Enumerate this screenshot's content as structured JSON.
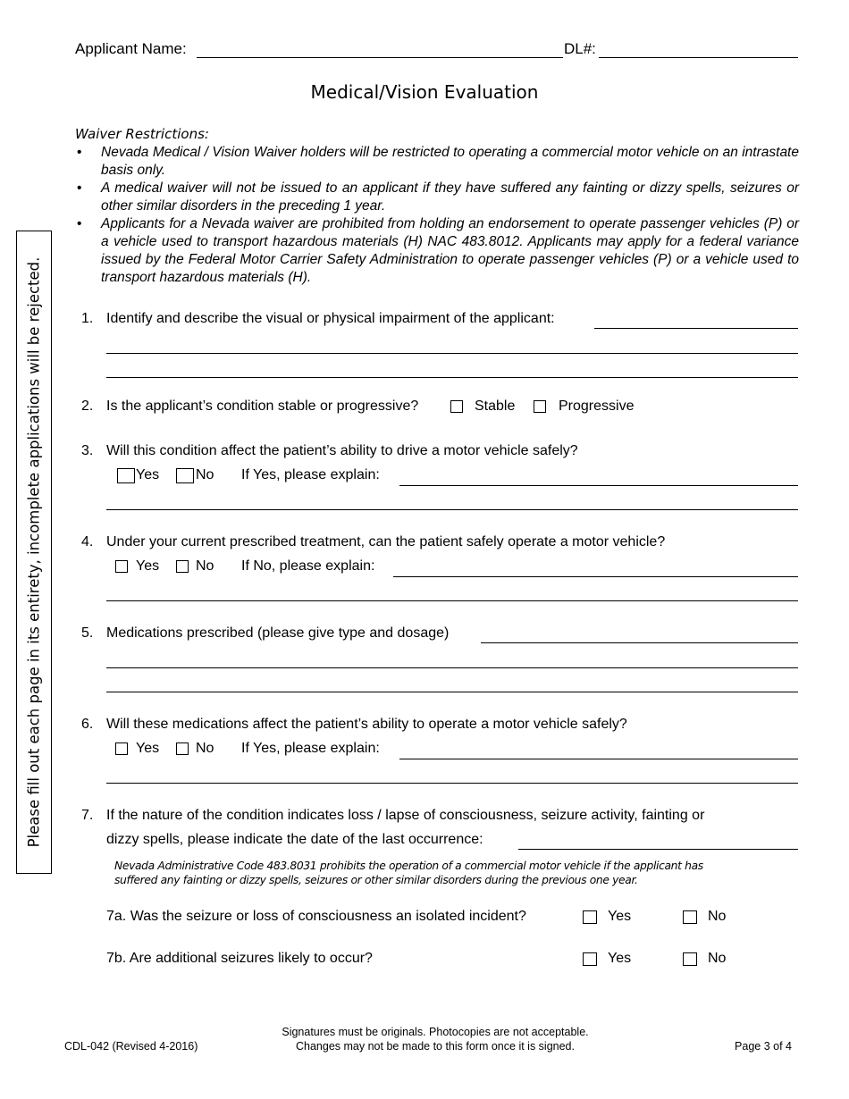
{
  "header": {
    "applicant_name_label": "Applicant Name:",
    "dl_label": "DL#:"
  },
  "title": "Medical/Vision Evaluation",
  "side_note": "Please fill out each page in its entirety, incomplete applications will be rejected.",
  "waiver": {
    "heading": "Waiver Restrictions:",
    "bullets": [
      "Nevada Medical / Vision Waiver holders will be restricted to operating a commercial motor vehicle on an intrastate basis only.",
      "A medical waiver will not be issued to an applicant if they have suffered any fainting or dizzy spells, seizures or other similar disorders in the preceding 1 year.",
      "Applicants for a Nevada waiver are prohibited from holding an endorsement to operate passenger vehicles (P) or a vehicle used to transport hazardous materials (H) NAC 483.8012.  Applicants may apply for a federal variance issued by the Federal Motor Carrier Safety Administration to operate passenger vehicles (P) or a vehicle used to transport hazardous materials (H)."
    ]
  },
  "questions": {
    "q1": {
      "num": "1.",
      "text": "Identify and describe the visual or physical impairment of the applicant:"
    },
    "q2": {
      "num": "2.",
      "text": "Is the applicant’s condition stable or progressive?",
      "opt1": "Stable",
      "opt2": "Progressive"
    },
    "q3": {
      "num": "3.",
      "text": "Will this condition affect the patient’s ability to drive a motor vehicle safely?",
      "yes": "Yes",
      "no": "No",
      "explain": "If Yes, please explain:"
    },
    "q4": {
      "num": "4.",
      "text": "Under your current prescribed treatment, can the patient safely operate a motor vehicle?",
      "yes": "Yes",
      "no": "No",
      "explain": "If No, please explain:"
    },
    "q5": {
      "num": "5.",
      "text": "Medications prescribed (please give type and dosage)"
    },
    "q6": {
      "num": "6.",
      "text": "Will these medications affect the patient’s ability to operate a motor vehicle safely?",
      "yes": "Yes",
      "no": "No",
      "explain": "If Yes, please explain:"
    },
    "q7": {
      "num": "7.",
      "line1": "If the nature of the condition indicates loss / lapse of consciousness, seizure activity, fainting or",
      "line2": "dizzy spells, please indicate the date of the last occurrence:",
      "note1": "Nevada Administrative Code 483.8031 prohibits the operation of a commercial motor vehicle if the applicant has",
      "note2": "suffered any fainting or dizzy spells, seizures or other similar disorders during the previous one year."
    },
    "q7a": {
      "text": "7a. Was the seizure or loss of consciousness an isolated incident?",
      "yes": "Yes",
      "no": "No"
    },
    "q7b": {
      "text": "7b. Are additional seizures likely to occur?",
      "yes": "Yes",
      "no": "No"
    }
  },
  "footer": {
    "form_id": "CDL-042 (Revised 4-2016)",
    "line1": "Signatures must be originals.  Photocopies are not acceptable.",
    "line2": "Changes may not be made to this form once it is signed.",
    "page": "Page 3 of 4"
  }
}
